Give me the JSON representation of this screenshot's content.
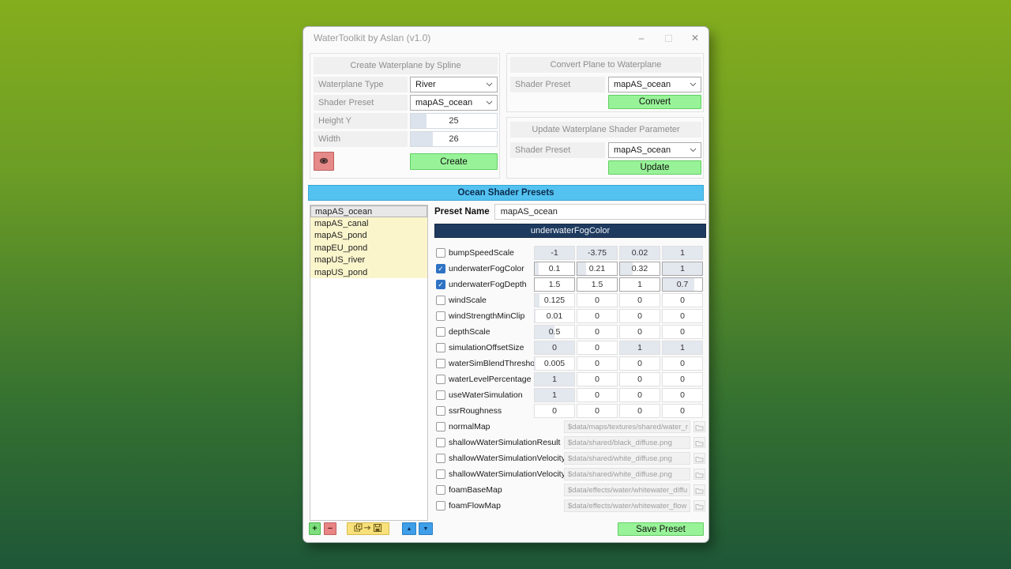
{
  "window": {
    "title": "WaterToolkit by Aslan (v1.0)",
    "minimize_label": "–",
    "close_label": "✕"
  },
  "create_panel": {
    "title": "Create Waterplane by Spline",
    "fields": [
      {
        "label": "Waterplane Type",
        "type": "select",
        "value": "River"
      },
      {
        "label": "Shader Preset",
        "type": "select",
        "value": "mapAS_ocean"
      },
      {
        "label": "Height Y",
        "type": "spin",
        "value": "25",
        "fill": 0.18
      },
      {
        "label": "Width",
        "type": "spin",
        "value": "26",
        "fill": 0.26
      }
    ],
    "create_label": "Create"
  },
  "convert_panel": {
    "title": "Convert Plane to Waterplane",
    "shader_label": "Shader Preset",
    "shader_value": "mapAS_ocean",
    "button_label": "Convert"
  },
  "update_panel": {
    "title": "Update Waterplane Shader Parameter",
    "shader_label": "Shader Preset",
    "shader_value": "mapAS_ocean",
    "button_label": "Update"
  },
  "presets": {
    "header": "Ocean Shader Presets",
    "list": [
      "mapAS_ocean",
      "mapAS_canal",
      "mapAS_pond",
      "mapEU_pond",
      "mapUS_river",
      "mapUS_pond"
    ],
    "selected_index": 0,
    "preset_name_label": "Preset Name",
    "preset_name_value": "mapAS_ocean",
    "group_header": "underwaterFogColor"
  },
  "parameters": {
    "numeric_rows": [
      {
        "name": "bumpSpeedScale",
        "checked": false,
        "values": [
          "-1",
          "-3.75",
          "0.02",
          "1"
        ],
        "fills": [
          1,
          1,
          1,
          1
        ]
      },
      {
        "name": "underwaterFogColor",
        "checked": true,
        "values": [
          "0.1",
          "0.21",
          "0.32",
          "1"
        ],
        "fills": [
          0.1,
          0.21,
          0.32,
          1
        ]
      },
      {
        "name": "underwaterFogDepth",
        "checked": true,
        "values": [
          "1.5",
          "1.5",
          "1",
          "0.7"
        ],
        "fills": [
          0,
          0,
          0,
          0.8
        ]
      },
      {
        "name": "windScale",
        "checked": false,
        "values": [
          "0.125",
          "0",
          "0",
          "0"
        ],
        "fills": [
          0.125,
          0,
          0,
          0
        ]
      },
      {
        "name": "windStrengthMinClip",
        "checked": false,
        "values": [
          "0.01",
          "0",
          "0",
          "0"
        ],
        "fills": [
          0.02,
          0,
          0,
          0
        ]
      },
      {
        "name": "depthScale",
        "checked": false,
        "values": [
          "0.5",
          "0",
          "0",
          "0"
        ],
        "fills": [
          0.5,
          0,
          0,
          0
        ]
      },
      {
        "name": "simulationOffsetSize",
        "checked": false,
        "values": [
          "0",
          "0",
          "1",
          "1"
        ],
        "fills": [
          1,
          0,
          1,
          1
        ]
      },
      {
        "name": "waterSimBlendThreshold",
        "checked": false,
        "values": [
          "0.005",
          "0",
          "0",
          "0"
        ],
        "fills": [
          0.01,
          0,
          0,
          0
        ]
      },
      {
        "name": "waterLevelPercentage",
        "checked": false,
        "values": [
          "1",
          "0",
          "0",
          "0"
        ],
        "fills": [
          1,
          0,
          0,
          0
        ]
      },
      {
        "name": "useWaterSimulation",
        "checked": false,
        "values": [
          "1",
          "0",
          "0",
          "0"
        ],
        "fills": [
          1,
          0,
          0,
          0
        ]
      },
      {
        "name": "ssrRoughness",
        "checked": false,
        "values": [
          "0",
          "0",
          "0",
          "0"
        ],
        "fills": [
          0,
          0,
          0,
          0
        ]
      }
    ],
    "map_rows": [
      {
        "name": "normalMap",
        "checked": false,
        "path": "$data/maps/textures/shared/water_r"
      },
      {
        "name": "shallowWaterSimulationResult",
        "checked": false,
        "path": "$data/shared/black_diffuse.png"
      },
      {
        "name": "shallowWaterSimulationVelocityU",
        "checked": false,
        "path": "$data/shared/white_diffuse.png"
      },
      {
        "name": "shallowWaterSimulationVelocityV",
        "checked": false,
        "path": "$data/shared/white_diffuse.png"
      },
      {
        "name": "foamBaseMap",
        "checked": false,
        "path": "$data/effects/water/whitewater_diffu"
      },
      {
        "name": "foamFlowMap",
        "checked": false,
        "path": "$data/effects/water/whitewater_flow"
      }
    ]
  },
  "toolbar": {
    "add_label": "+",
    "remove_label": "−",
    "up_label": "▲",
    "down_label": "▼",
    "save_preset_label": "Save Preset"
  },
  "colors": {
    "accent_green": "#98f398",
    "accent_red": "#e68989",
    "accent_yellow": "#f8e07b",
    "accent_blue": "#3f9fe8",
    "header_cyan": "#54c2f0",
    "header_navy": "#1e3a5f",
    "list_yellow": "#fbf5cc",
    "bg_top": "#85ae1d",
    "bg_bottom": "#1e5737"
  }
}
